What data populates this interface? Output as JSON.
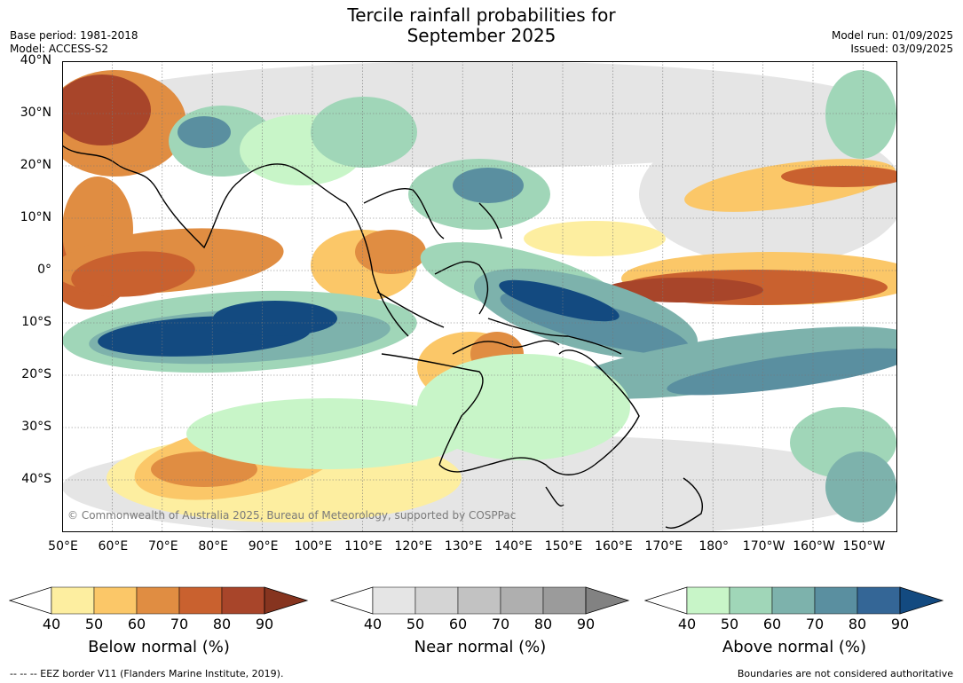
{
  "title_line1": "Tercile rainfall probabilities for",
  "title_line2": "September 2025",
  "base_period": "Base period: 1981-2018",
  "model": "Model: ACCESS-S2",
  "model_run": "Model run: 01/09/2025",
  "issued": "Issued: 03/09/2025",
  "copyright": "© Commonwealth of Australia 2025, Bureau of Meteorology, supported by COSPPac",
  "lat_labels": [
    "40°N",
    "30°N",
    "20°N",
    "10°N",
    "0°",
    "10°S",
    "20°S",
    "30°S",
    "40°S"
  ],
  "lon_labels": [
    "50°E",
    "60°E",
    "70°E",
    "80°E",
    "90°E",
    "100°E",
    "110°E",
    "120°E",
    "130°E",
    "140°E",
    "150°E",
    "160°E",
    "170°E",
    "180°",
    "170°W",
    "160°W",
    "150°W"
  ],
  "colorbars": [
    {
      "label": "Below normal (%)",
      "ticks": [
        "40",
        "50",
        "60",
        "70",
        "80",
        "90"
      ],
      "colors": [
        "#ffffff",
        "#fdeea0",
        "#fbc768",
        "#e08d42",
        "#c9612f",
        "#a8452a",
        "#86341f"
      ]
    },
    {
      "label": "Near normal (%)",
      "ticks": [
        "40",
        "50",
        "60",
        "70",
        "80",
        "90"
      ],
      "colors": [
        "#ffffff",
        "#e5e5e5",
        "#d4d4d4",
        "#c2c2c2",
        "#afafaf",
        "#9b9b9b",
        "#828282"
      ]
    },
    {
      "label": "Above normal (%)",
      "ticks": [
        "40",
        "50",
        "60",
        "70",
        "80",
        "90"
      ],
      "colors": [
        "#ffffff",
        "#c8f5c8",
        "#a0d6b8",
        "#7db2ac",
        "#5a8fa0",
        "#346696",
        "#134a80"
      ]
    }
  ],
  "eez_legend": "--  --  -- EEZ border V11 (Flanders Marine Institute, 2019).",
  "disclaimer": "Boundaries are not considered authoritative",
  "palette": {
    "below": [
      "#fdeea0",
      "#fbc768",
      "#e08d42",
      "#c9612f",
      "#a8452a"
    ],
    "near": [
      "#e5e5e5",
      "#d4d4d4"
    ],
    "above": [
      "#c8f5c8",
      "#a0d6b8",
      "#7db2ac",
      "#5a8fa0",
      "#134a80"
    ],
    "land": "#000000"
  }
}
